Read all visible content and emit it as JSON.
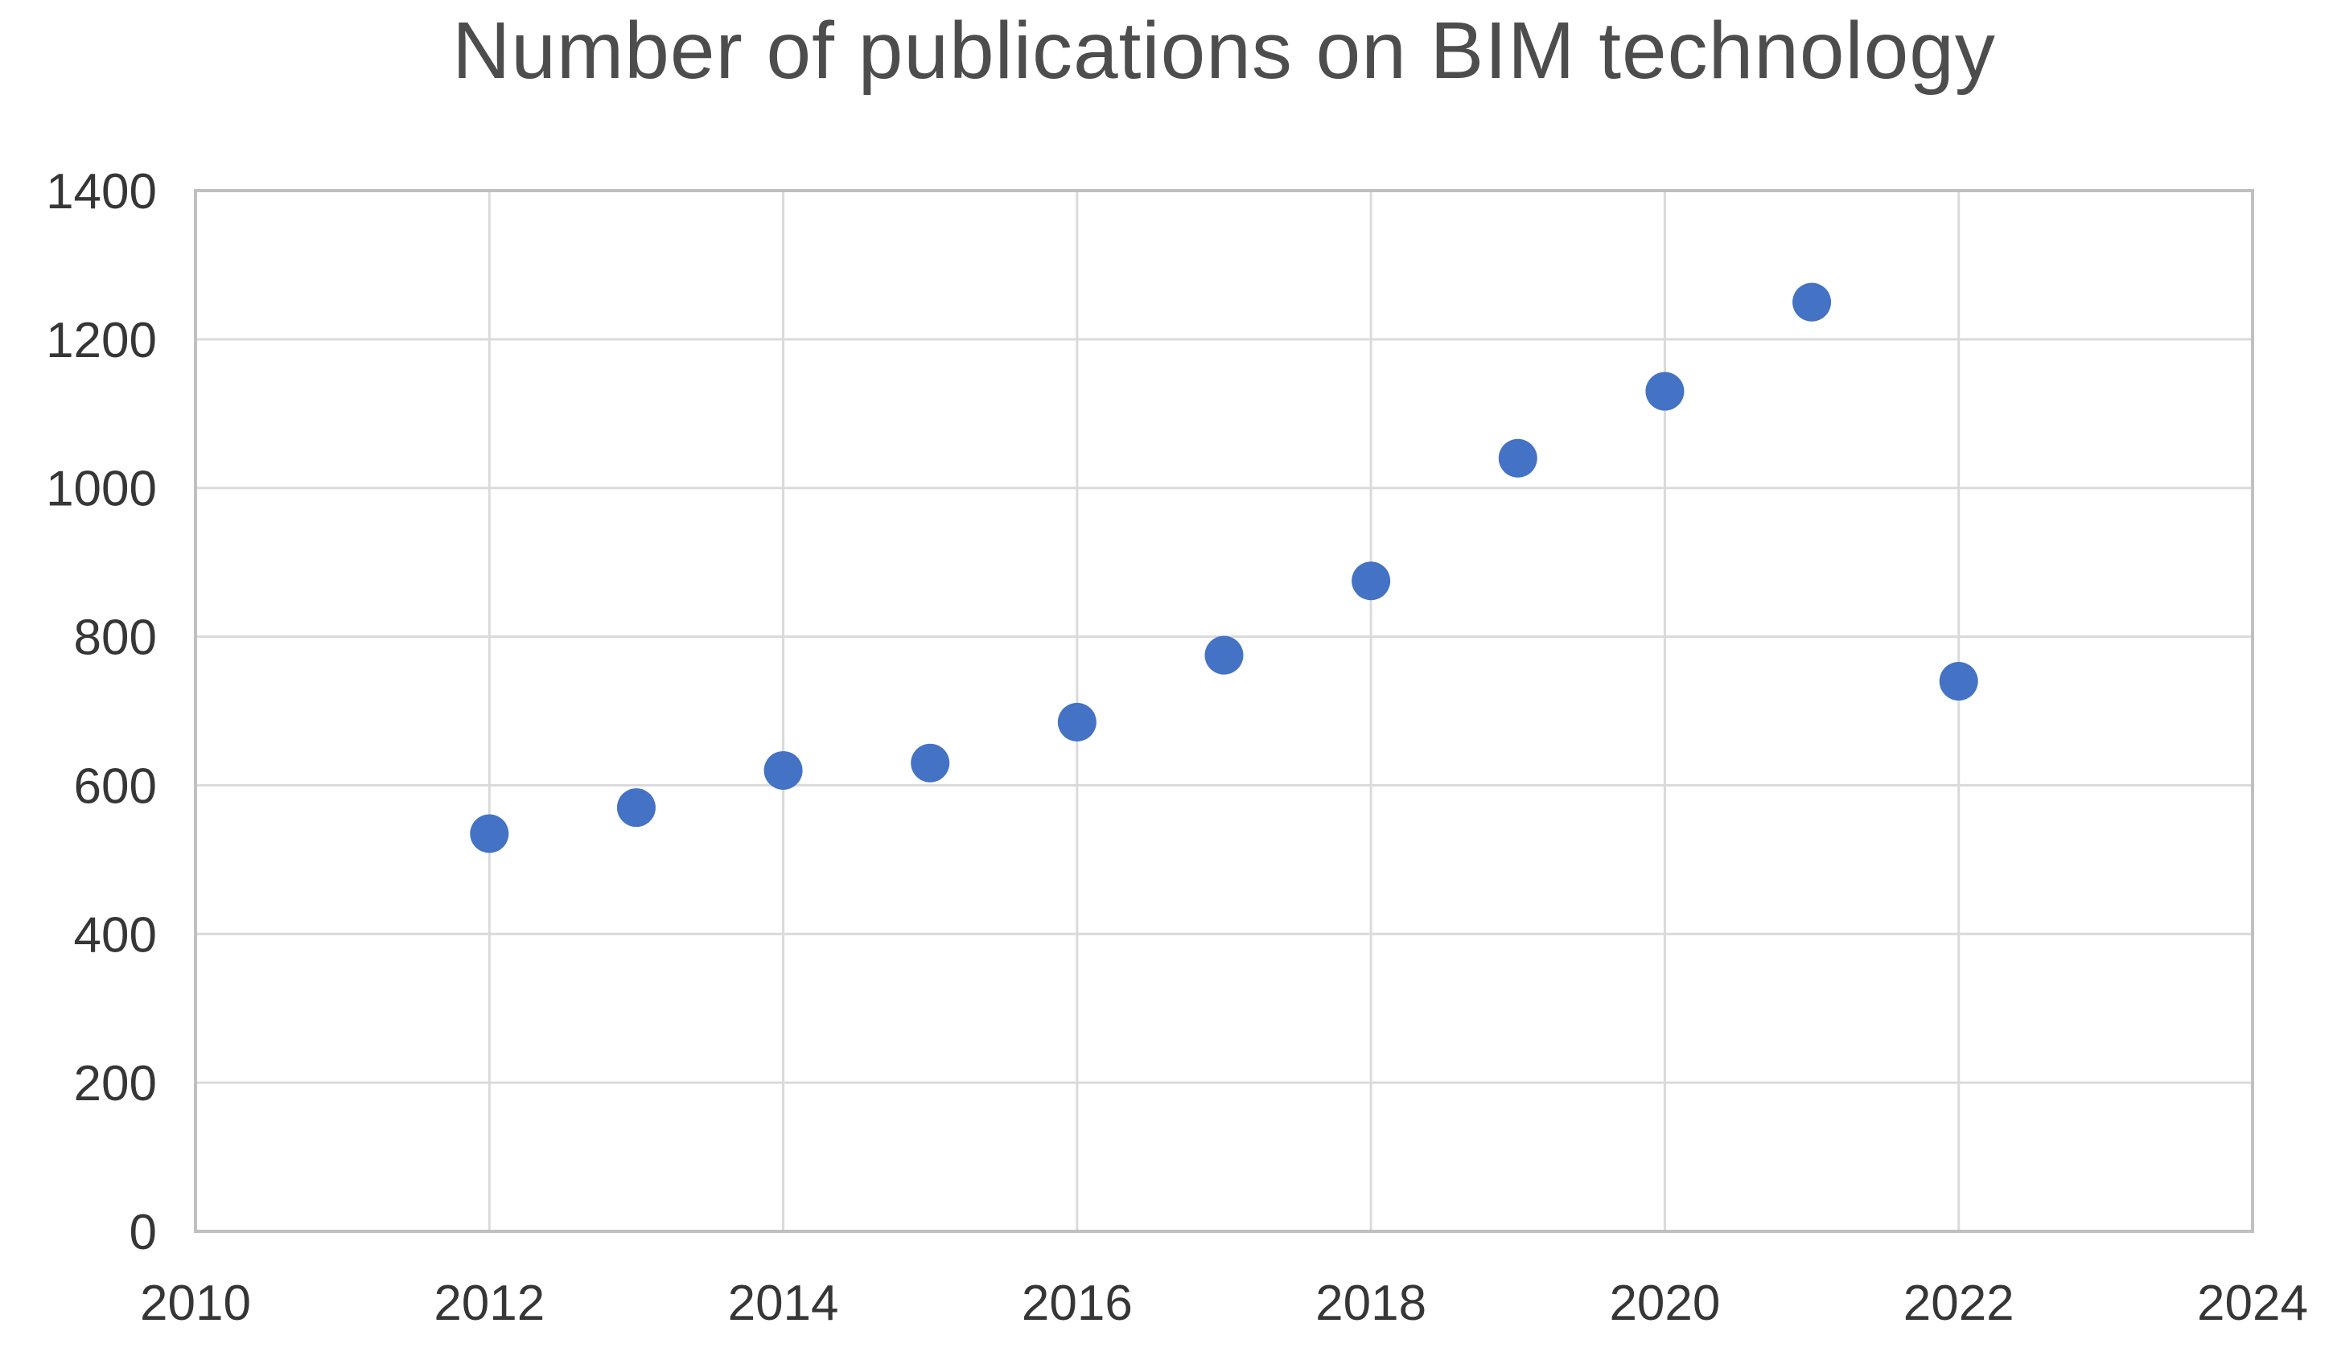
{
  "page": {
    "background_color": "#ffffff"
  },
  "chart_data": {
    "type": "scatter",
    "title": "Number of publications on BIM technology",
    "xlabel": "",
    "ylabel": "",
    "x": [
      2012,
      2013,
      2014,
      2015,
      2016,
      2017,
      2018,
      2019,
      2020,
      2021,
      2022
    ],
    "values": [
      535,
      570,
      620,
      630,
      685,
      775,
      875,
      1040,
      1130,
      1250,
      740
    ],
    "xlim": [
      2010,
      2024
    ],
    "ylim": [
      0,
      1400
    ],
    "x_ticks": [
      2010,
      2012,
      2014,
      2016,
      2018,
      2020,
      2022,
      2024
    ],
    "y_ticks": [
      0,
      200,
      400,
      600,
      800,
      1000,
      1200,
      1400
    ],
    "grid": true,
    "legend": false,
    "point_color": "#4472C4",
    "gridline_color": "#DADADA",
    "border_color": "#C0C0C0",
    "tick_label_color": "#363636",
    "title_color": "#4d4d4d"
  }
}
